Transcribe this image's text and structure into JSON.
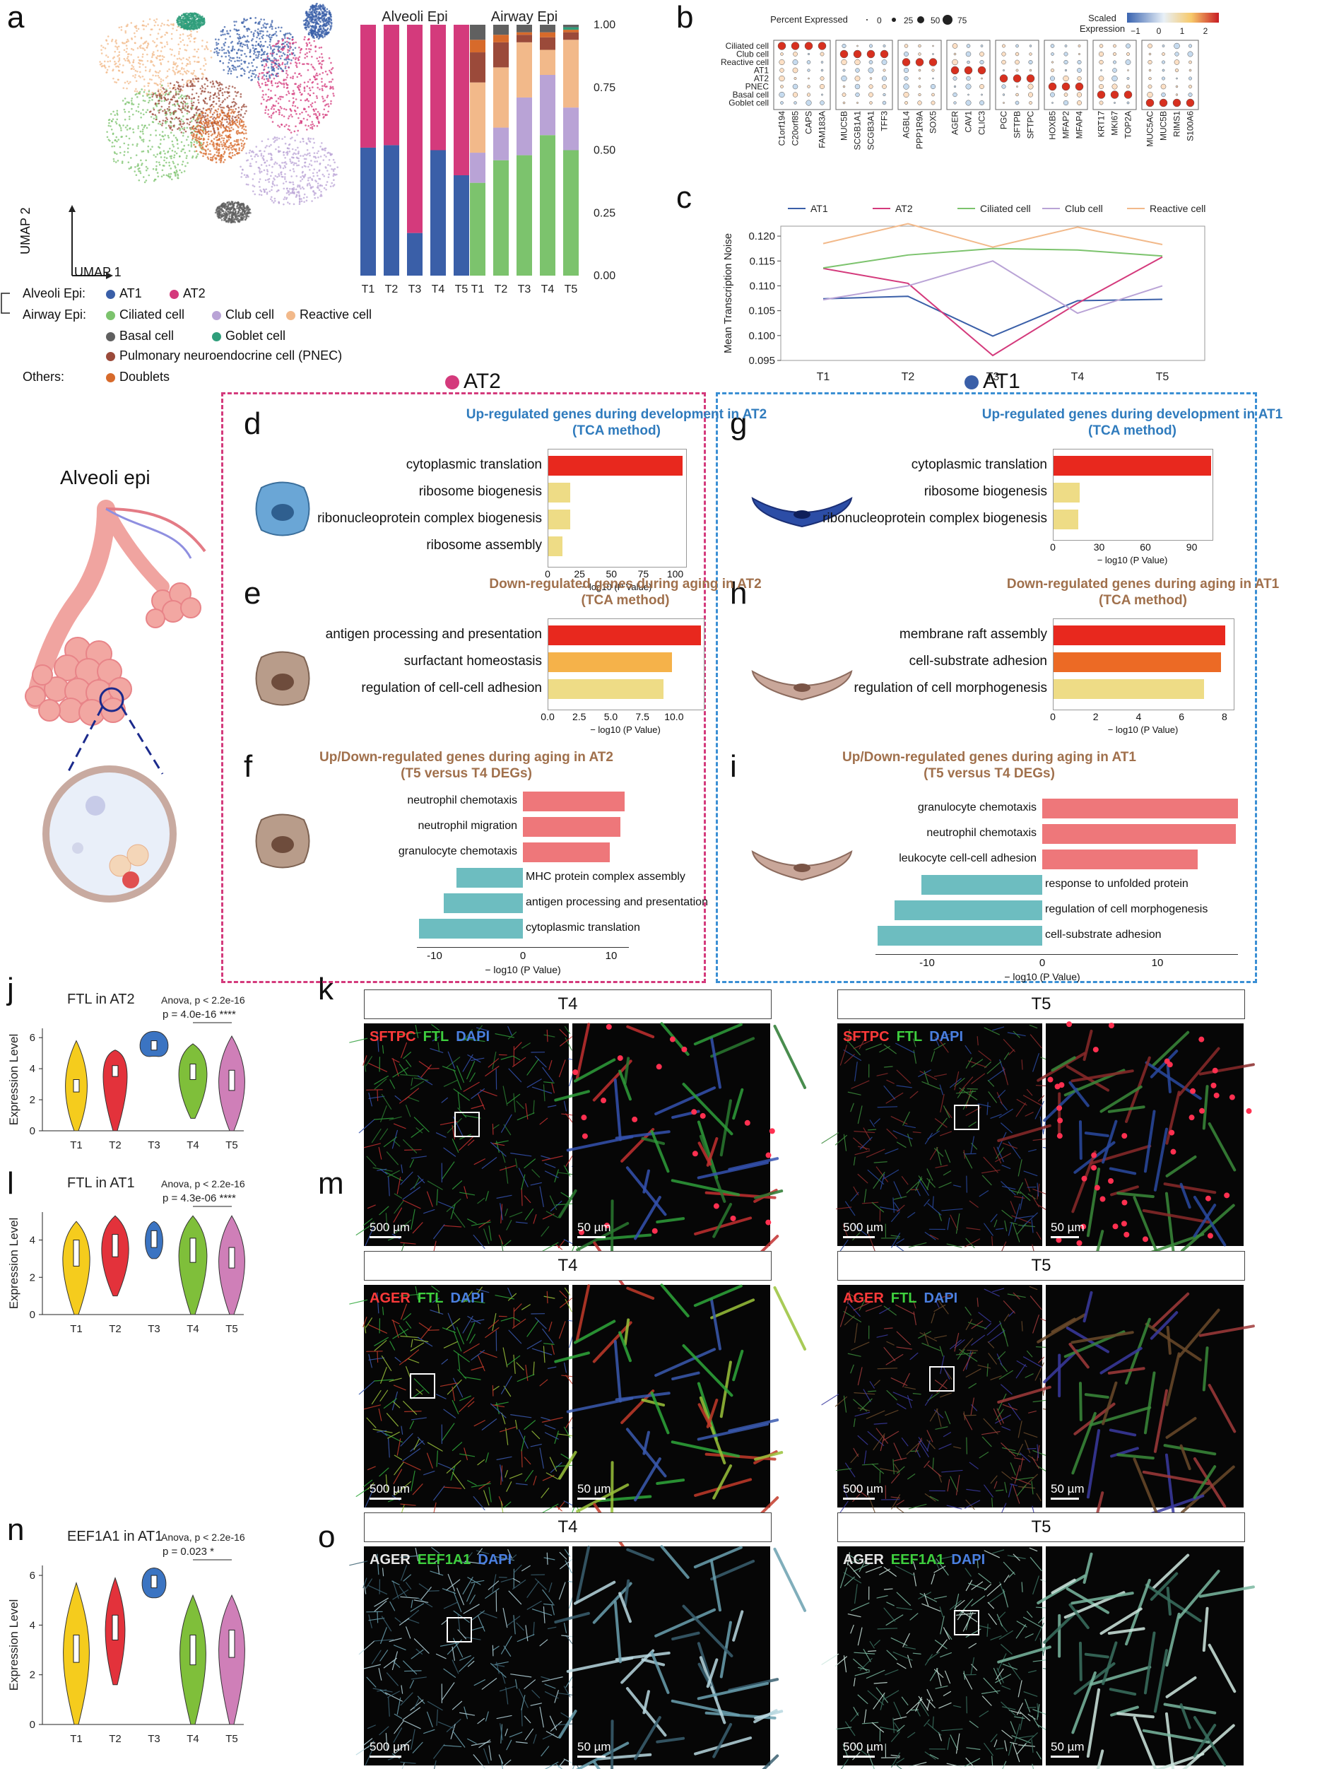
{
  "panel_letters": {
    "a": "a",
    "b": "b",
    "c": "c",
    "d": "d",
    "e": "e",
    "f": "f",
    "g": "g",
    "h": "h",
    "i": "i",
    "j": "j",
    "k": "k",
    "l": "l",
    "m": "m",
    "n": "n",
    "o": "o"
  },
  "umap": {
    "axis_y": "UMAP 2",
    "axis_x": "UMAP 1"
  },
  "legend_a": {
    "alveoli_label": "Alveoli Epi:",
    "airway_label": "Airway Epi:",
    "others_label": "Others:",
    "items": [
      {
        "name": "AT1",
        "color": "#3a5fa8"
      },
      {
        "name": "AT2",
        "color": "#d43a7c"
      },
      {
        "name": "Ciliated cell",
        "color": "#7cc36d"
      },
      {
        "name": "Club cell",
        "color": "#b9a3d6"
      },
      {
        "name": "Reactive cell",
        "color": "#f2b98a"
      },
      {
        "name": "Basal cell",
        "color": "#606060"
      },
      {
        "name": "Goblet cell",
        "color": "#2f9e7b"
      },
      {
        "name": "Pulmonary neuroendocrine cell (PNEC)",
        "color": "#9b4a3a"
      },
      {
        "name": "Doublets",
        "color": "#d76a2b"
      }
    ]
  },
  "chart_data": [
    {
      "type": "bar",
      "title": "Alveoli Epi",
      "categories": [
        "T1",
        "T2",
        "T3",
        "T4",
        "T5"
      ],
      "ylim": [
        0,
        1
      ],
      "yticks": [
        "0.00",
        "0.25",
        "0.50",
        "0.75",
        "1.00"
      ],
      "series": [
        {
          "name": "AT1",
          "color": "#3a5fa8",
          "values": [
            0.51,
            0.52,
            0.17,
            0.5,
            0.4
          ]
        },
        {
          "name": "AT2",
          "color": "#d43a7c",
          "values": [
            0.49,
            0.48,
            0.83,
            0.5,
            0.6
          ]
        }
      ]
    },
    {
      "type": "bar",
      "title": "Airway Epi",
      "categories": [
        "T1",
        "T2",
        "T3",
        "T4",
        "T5"
      ],
      "ylim": [
        0,
        1
      ],
      "series": [
        {
          "name": "Ciliated cell",
          "color": "#7cc36d",
          "values": [
            0.37,
            0.46,
            0.48,
            0.56,
            0.5
          ]
        },
        {
          "name": "Club cell",
          "color": "#b9a3d6",
          "values": [
            0.12,
            0.13,
            0.23,
            0.24,
            0.17
          ]
        },
        {
          "name": "Reactive cell",
          "color": "#f2b98a",
          "values": [
            0.28,
            0.24,
            0.22,
            0.1,
            0.27
          ]
        },
        {
          "name": "PNEC",
          "color": "#9b4a3a",
          "values": [
            0.12,
            0.1,
            0.03,
            0.05,
            0.03
          ]
        },
        {
          "name": "Doublets",
          "color": "#d76a2b",
          "values": [
            0.05,
            0.03,
            0.01,
            0.02,
            0.01
          ]
        },
        {
          "name": "Goblet cell",
          "color": "#2f9e7b",
          "values": [
            0.0,
            0.0,
            0.0,
            0.0,
            0.01
          ]
        },
        {
          "name": "Basal cell",
          "color": "#606060",
          "values": [
            0.06,
            0.04,
            0.03,
            0.03,
            0.01
          ]
        }
      ]
    },
    {
      "type": "line",
      "ylabel": "Mean Transcription Noise",
      "x": [
        "T1",
        "T2",
        "T3",
        "T4",
        "T5"
      ],
      "ylim": [
        0.095,
        0.122
      ],
      "yticks": [
        "0.095",
        "0.100",
        "0.105",
        "0.110",
        "0.115",
        "0.120"
      ],
      "series": [
        {
          "name": "AT1",
          "color": "#3a5fa8",
          "values": [
            0.1074,
            0.1079,
            0.0999,
            0.107,
            0.1073
          ]
        },
        {
          "name": "AT2",
          "color": "#d43a7c",
          "values": [
            0.1135,
            0.1105,
            0.096,
            0.1065,
            0.1158
          ]
        },
        {
          "name": "Ciliated cell",
          "color": "#7cc36d",
          "values": [
            0.1136,
            0.1162,
            0.1175,
            0.1172,
            0.116
          ]
        },
        {
          "name": "Club cell",
          "color": "#b9a3d6",
          "values": [
            0.1072,
            0.11,
            0.115,
            0.1045,
            0.11
          ]
        },
        {
          "name": "Reactive cell",
          "color": "#f2b98a",
          "values": [
            0.1185,
            0.1225,
            0.1178,
            0.1218,
            0.1183
          ]
        }
      ]
    }
  ],
  "dotplot": {
    "legend_pct_title": "Percent Expressed",
    "legend_pct_values": [
      "0",
      "25",
      "50",
      "75"
    ],
    "legend_scale_title": "Scaled Expression",
    "legend_scale_ticks": [
      "−1",
      "0",
      "1",
      "2"
    ],
    "rows": [
      "Ciliated cell",
      "Club cell",
      "Reactive cell",
      "AT1",
      "AT2",
      "PNEC",
      "Basal cell",
      "Goblet cell"
    ],
    "groups": [
      [
        "C1orf194",
        "C20orf85",
        "CAPS",
        "FAM183A"
      ],
      [
        "MUC5B",
        "SCGB1A1",
        "SCGB3A1",
        "TFF3"
      ],
      [
        "AGBL4",
        "PPP1R9A",
        "SOX5"
      ],
      [
        "AGER",
        "CAV1",
        "CLIC3"
      ],
      [
        "PGC",
        "SFTPB",
        "SFTPC"
      ],
      [
        "HOXB5",
        "MFAP2",
        "MFAP4"
      ],
      [
        "KRT17",
        "MKI67",
        "TOP2A"
      ],
      [
        "MUC5AC",
        "MUC5B",
        "RIMS1",
        "S100A6"
      ]
    ]
  },
  "section_headers": {
    "at2": "AT2",
    "at1": "AT1",
    "at2_color": "#d43a7c",
    "at1_color": "#3a5fa8"
  },
  "alveoli_epi_label": "Alveoli epi",
  "enrichment": {
    "d": {
      "title1": "Up-regulated genes during development in AT2",
      "title2": "(TCA method)",
      "xlabel": "− log10 (P Value)",
      "ticks": [
        "0",
        "25",
        "50",
        "75",
        "100"
      ],
      "xmax": 108,
      "terms": [
        {
          "t": "cytoplasmic translation",
          "v": 105,
          "c": "#e8281e"
        },
        {
          "t": "ribosome biogenesis",
          "v": 17,
          "c": "#eedc86"
        },
        {
          "t": "ribonucleoprotein complex biogenesis",
          "v": 17,
          "c": "#eedc86"
        },
        {
          "t": "ribosome assembly",
          "v": 11,
          "c": "#eedc86"
        }
      ]
    },
    "e": {
      "title1": "Down-regulated genes during aging in AT2",
      "title2": "(TCA method)",
      "xlabel": "− log10 (P Value)",
      "ticks": [
        "0.0",
        "2.5",
        "5.0",
        "7.5",
        "10.0"
      ],
      "xmax": 12.3,
      "terms": [
        {
          "t": "antigen processing and presentation",
          "v": 12.1,
          "c": "#e8281e"
        },
        {
          "t": "surfactant homeostasis",
          "v": 9.8,
          "c": "#f5b24a"
        },
        {
          "t": "regulation of cell-cell adhesion",
          "v": 9.1,
          "c": "#eedc86"
        }
      ]
    },
    "f": {
      "title1": "Up/Down-regulated genes during aging in AT2",
      "title2": "(T5 versus T4 DEGs)",
      "xlabel": "− log10 (P Value)",
      "ticks": [
        "-10",
        "0",
        "10"
      ],
      "xmin": -12,
      "xmax": 12,
      "terms": [
        {
          "t": "neutrophil chemotaxis",
          "v": 11.5
        },
        {
          "t": "neutrophil migration",
          "v": 11.0
        },
        {
          "t": "granulocyte chemotaxis",
          "v": 9.8
        },
        {
          "t": "MHC protein complex assembly",
          "v": -7.5
        },
        {
          "t": "antigen processing and presentation",
          "v": -9.0
        },
        {
          "t": "cytoplasmic translation",
          "v": -11.8
        }
      ]
    },
    "g": {
      "title1": "Up-regulated genes during development in AT1",
      "title2": "(TCA method)",
      "xlabel": "− log10 (P Value)",
      "ticks": [
        "0",
        "30",
        "60",
        "90"
      ],
      "xmax": 103,
      "terms": [
        {
          "t": "cytoplasmic translation",
          "v": 102,
          "c": "#e8281e"
        },
        {
          "t": "ribosome biogenesis",
          "v": 17,
          "c": "#eedc86"
        },
        {
          "t": "ribonucleoprotein complex biogenesis",
          "v": 16,
          "c": "#eedc86"
        }
      ]
    },
    "h": {
      "title1": "Down-regulated genes during aging in AT1",
      "title2": "(TCA method)",
      "xlabel": "− log10 (P Value)",
      "ticks": [
        "0",
        "2",
        "4",
        "6",
        "8"
      ],
      "xmax": 8.4,
      "terms": [
        {
          "t": "membrane raft assembly",
          "v": 8.0,
          "c": "#e8281e"
        },
        {
          "t": "cell-substrate adhesion",
          "v": 7.8,
          "c": "#ec6a25"
        },
        {
          "t": "regulation of cell morphogenesis",
          "v": 7.0,
          "c": "#eedc86"
        }
      ]
    },
    "i": {
      "title1": "Up/Down-regulated genes during aging in AT1",
      "title2": "(T5 versus T4 DEGs)",
      "xlabel": "− log10 (P Value)",
      "ticks": [
        "-10",
        "0",
        "10"
      ],
      "xmin": -14.5,
      "xmax": 17,
      "terms": [
        {
          "t": "granulocyte chemotaxis",
          "v": 17
        },
        {
          "t": "neutrophil chemotaxis",
          "v": 16.8
        },
        {
          "t": "leukocyte cell-cell adhesion",
          "v": 13.5
        },
        {
          "t": "response to unfolded protein",
          "v": -10.5
        },
        {
          "t": "regulation of cell morphogenesis",
          "v": -12.8
        },
        {
          "t": "cell-substrate adhesion",
          "v": -14.3
        }
      ]
    }
  },
  "violins": {
    "j": {
      "title": "FTL in AT2",
      "anova": "Anova, p < 2.2e-16",
      "pval": "p = 4.0e-16 ****",
      "ylabel": "Expression Level",
      "yticks": [
        "0",
        "2",
        "4",
        "6"
      ]
    },
    "l": {
      "title": "FTL in AT1",
      "anova": "Anova, p < 2.2e-16",
      "pval": "p = 4.3e-06 ****",
      "ylabel": "Expression Level",
      "yticks": [
        "0",
        "2",
        "4"
      ]
    },
    "n": {
      "title": "EEF1A1 in AT1",
      "anova": "Anova, p < 2.2e-16",
      "pval": "p = 0.023 *",
      "ylabel": "Expression Level",
      "yticks": [
        "0",
        "2",
        "4",
        "6"
      ]
    },
    "xlabels": [
      "T1",
      "T2",
      "T3",
      "T4",
      "T5"
    ],
    "colors": [
      "#f5cc1d",
      "#e3323b",
      "#3b74c2",
      "#7fbf3a",
      "#cf7fb8"
    ]
  },
  "micro": {
    "t4": "T4",
    "t5": "T5",
    "k_stain": {
      "a": "SFTPC",
      "b": "FTL",
      "c": "DAPI"
    },
    "m_stain": {
      "a": "AGER",
      "b": "FTL",
      "c": "DAPI"
    },
    "o_stain": {
      "a": "AGER",
      "b": "EEF1A1",
      "c": "DAPI"
    },
    "scale_big": "500 µm",
    "scale_small": "50 µm"
  }
}
